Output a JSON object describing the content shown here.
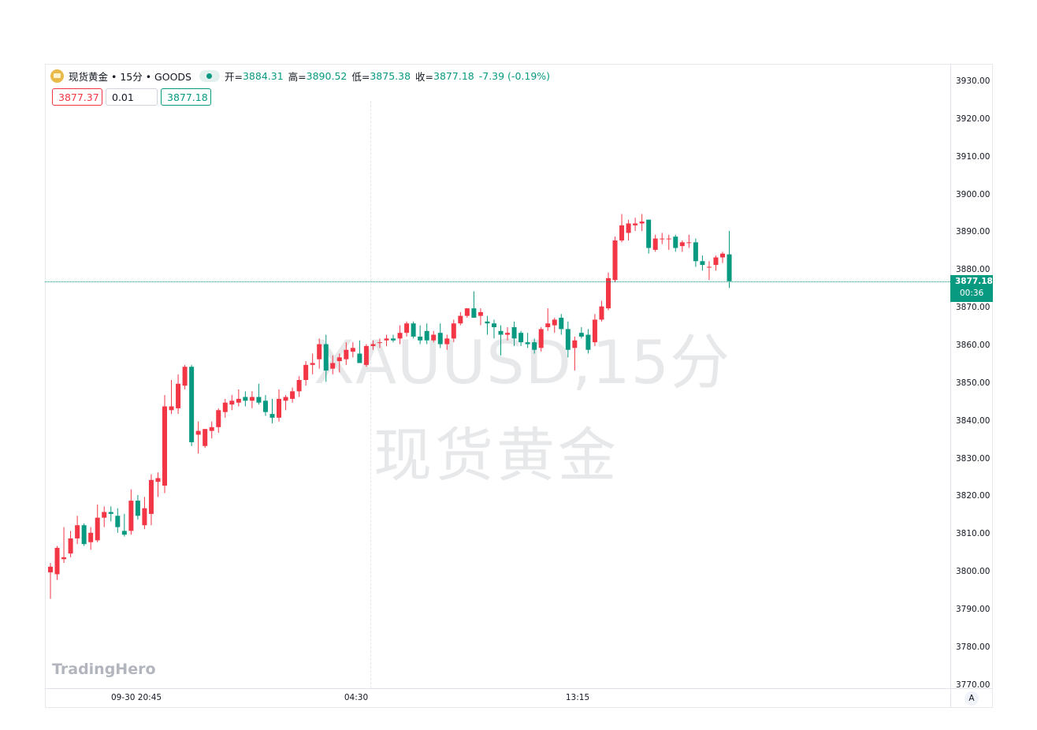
{
  "header": {
    "symbol": "现货黄金 • 15分 • GOODS",
    "open_label": "开=",
    "open_value": "3884.31",
    "high_label": "高=",
    "high_value": "3890.52",
    "low_label": "低=",
    "low_value": "3875.38",
    "close_label": "收=",
    "close_value": "3877.18",
    "change": "-7.39 (-0.19%)"
  },
  "trade_panel": {
    "sell_price": "3877.37",
    "quantity": "0.01",
    "buy_price": "3877.18"
  },
  "watermark": {
    "line1": "XAUUSD,15分",
    "line2": "现货黄金"
  },
  "brand": "TradingHero",
  "current_price": {
    "value": "3877.18",
    "countdown": "00:36"
  },
  "auto_scale_label": "A",
  "colors": {
    "up": "#f23645",
    "down": "#089981",
    "accent": "#089981"
  },
  "icons": {
    "symbol": "gold-coin-icon",
    "market_status": "market-open-dot-icon"
  },
  "chart_data": {
    "type": "candlestick",
    "title": "",
    "x_tick_labels": [
      "09-30 20:45",
      "04:30",
      "13:15"
    ],
    "y_tick_labels": [
      "3930.00",
      "3920.00",
      "3910.00",
      "3900.00",
      "3890.00",
      "3880.00",
      "3870.00",
      "3860.00",
      "3850.00",
      "3840.00",
      "3830.00",
      "3820.00",
      "3810.00",
      "3800.00",
      "3790.00",
      "3780.00",
      "3770.00"
    ],
    "ylim": [
      3770,
      3935
    ],
    "grid": false,
    "ohlc": [
      [
        3800.0,
        3802.5,
        3793.0,
        3801.5
      ],
      [
        3799.5,
        3807.0,
        3798.0,
        3806.5
      ],
      [
        3803.5,
        3812.0,
        3802.5,
        3804.0
      ],
      [
        3805.0,
        3811.0,
        3804.0,
        3809.0
      ],
      [
        3809.0,
        3815.0,
        3807.5,
        3812.5
      ],
      [
        3812.5,
        3813.0,
        3807.0,
        3807.5
      ],
      [
        3808.0,
        3812.0,
        3806.0,
        3810.5
      ],
      [
        3808.5,
        3818.0,
        3808.0,
        3814.5
      ],
      [
        3814.5,
        3817.5,
        3812.0,
        3816.0
      ],
      [
        3816.0,
        3817.5,
        3813.5,
        3815.5
      ],
      [
        3815.0,
        3817.0,
        3810.5,
        3812.0
      ],
      [
        3811.0,
        3815.5,
        3809.5,
        3810.0
      ],
      [
        3811.0,
        3822.0,
        3810.0,
        3819.0
      ],
      [
        3819.0,
        3820.5,
        3814.0,
        3815.0
      ],
      [
        3812.5,
        3820.0,
        3811.5,
        3817.0
      ],
      [
        3815.5,
        3826.0,
        3812.5,
        3824.5
      ],
      [
        3824.0,
        3826.5,
        3820.0,
        3825.0
      ],
      [
        3823.0,
        3847.0,
        3821.0,
        3844.0
      ],
      [
        3843.0,
        3851.0,
        3842.0,
        3844.0
      ],
      [
        3843.5,
        3852.5,
        3842.0,
        3850.0
      ],
      [
        3849.5,
        3855.0,
        3848.5,
        3854.5
      ],
      [
        3854.5,
        3855.0,
        3833.5,
        3834.5
      ],
      [
        3836.5,
        3840.0,
        3831.5,
        3837.5
      ],
      [
        3833.5,
        3838.0,
        3833.0,
        3838.0
      ],
      [
        3837.5,
        3840.0,
        3835.5,
        3838.5
      ],
      [
        3838.5,
        3843.5,
        3837.0,
        3843.0
      ],
      [
        3842.5,
        3846.0,
        3841.0,
        3845.0
      ],
      [
        3844.5,
        3847.0,
        3843.0,
        3845.5
      ],
      [
        3845.0,
        3848.5,
        3844.0,
        3846.0
      ],
      [
        3846.5,
        3848.0,
        3844.0,
        3845.5
      ],
      [
        3845.5,
        3848.0,
        3843.5,
        3846.5
      ],
      [
        3846.5,
        3850.0,
        3844.5,
        3845.0
      ],
      [
        3845.5,
        3847.0,
        3841.5,
        3842.5
      ],
      [
        3842.0,
        3846.0,
        3839.5,
        3841.0
      ],
      [
        3841.0,
        3848.5,
        3840.0,
        3846.0
      ],
      [
        3845.5,
        3847.0,
        3843.0,
        3846.5
      ],
      [
        3846.0,
        3849.0,
        3845.0,
        3848.0
      ],
      [
        3848.0,
        3852.0,
        3846.5,
        3851.0
      ],
      [
        3851.0,
        3856.0,
        3849.5,
        3855.0
      ],
      [
        3855.0,
        3858.0,
        3852.5,
        3855.5
      ],
      [
        3856.5,
        3862.0,
        3854.0,
        3860.5
      ],
      [
        3860.5,
        3863.0,
        3850.5,
        3853.5
      ],
      [
        3854.0,
        3857.5,
        3852.5,
        3855.5
      ],
      [
        3856.0,
        3858.0,
        3853.0,
        3857.0
      ],
      [
        3856.5,
        3861.0,
        3855.0,
        3859.0
      ],
      [
        3858.5,
        3861.0,
        3857.0,
        3859.5
      ],
      [
        3858.0,
        3861.5,
        3855.5,
        3855.5
      ],
      [
        3855.0,
        3860.5,
        3854.5,
        3860.0
      ],
      [
        3860.0,
        3861.5,
        3859.0,
        3860.5
      ],
      [
        3861.0,
        3862.0,
        3859.5,
        3861.0
      ],
      [
        3861.5,
        3863.0,
        3860.0,
        3862.0
      ],
      [
        3862.0,
        3863.0,
        3861.0,
        3861.5
      ],
      [
        3862.0,
        3865.5,
        3860.5,
        3863.5
      ],
      [
        3863.5,
        3866.5,
        3862.5,
        3866.0
      ],
      [
        3866.0,
        3866.5,
        3862.0,
        3862.5
      ],
      [
        3862.5,
        3865.5,
        3860.5,
        3861.5
      ],
      [
        3864.0,
        3866.0,
        3860.5,
        3861.5
      ],
      [
        3861.5,
        3864.0,
        3861.0,
        3863.0
      ],
      [
        3863.5,
        3866.0,
        3859.5,
        3860.5
      ],
      [
        3860.5,
        3863.0,
        3859.0,
        3862.0
      ],
      [
        3862.0,
        3867.0,
        3861.0,
        3866.0
      ],
      [
        3866.0,
        3869.0,
        3865.5,
        3868.0
      ],
      [
        3868.0,
        3870.0,
        3867.5,
        3870.0
      ],
      [
        3870.0,
        3874.5,
        3868.0,
        3867.5
      ],
      [
        3868.0,
        3870.0,
        3865.5,
        3869.0
      ],
      [
        3866.5,
        3868.0,
        3863.0,
        3866.0
      ],
      [
        3866.0,
        3867.0,
        3862.0,
        3865.0
      ],
      [
        3864.0,
        3865.5,
        3857.5,
        3863.0
      ],
      [
        3863.0,
        3865.0,
        3861.5,
        3863.5
      ],
      [
        3865.0,
        3866.5,
        3860.0,
        3862.0
      ],
      [
        3863.5,
        3864.0,
        3860.0,
        3861.0
      ],
      [
        3861.0,
        3863.5,
        3859.5,
        3860.5
      ],
      [
        3861.0,
        3862.0,
        3858.0,
        3859.0
      ],
      [
        3859.5,
        3865.0,
        3858.5,
        3864.5
      ],
      [
        3865.0,
        3870.0,
        3864.0,
        3866.0
      ],
      [
        3865.5,
        3867.5,
        3863.5,
        3867.0
      ],
      [
        3867.5,
        3868.5,
        3863.0,
        3864.5
      ],
      [
        3864.5,
        3866.5,
        3857.0,
        3859.0
      ],
      [
        3859.5,
        3862.5,
        3853.5,
        3861.5
      ],
      [
        3863.5,
        3865.0,
        3862.0,
        3862.5
      ],
      [
        3863.0,
        3864.5,
        3858.0,
        3859.0
      ],
      [
        3861.0,
        3868.5,
        3860.0,
        3867.0
      ],
      [
        3867.0,
        3872.0,
        3866.5,
        3870.5
      ],
      [
        3870.0,
        3879.5,
        3869.5,
        3878.0
      ],
      [
        3877.5,
        3889.0,
        3877.0,
        3888.0
      ],
      [
        3888.0,
        3895.0,
        3887.5,
        3892.0
      ],
      [
        3890.0,
        3893.5,
        3888.0,
        3892.5
      ],
      [
        3892.0,
        3894.0,
        3890.5,
        3892.5
      ],
      [
        3892.5,
        3895.0,
        3890.5,
        3893.0
      ],
      [
        3893.5,
        3893.5,
        3884.5,
        3886.0
      ],
      [
        3885.5,
        3889.5,
        3885.0,
        3888.5
      ],
      [
        3888.5,
        3890.0,
        3887.0,
        3888.5
      ],
      [
        3888.5,
        3889.5,
        3885.5,
        3888.5
      ],
      [
        3889.0,
        3889.5,
        3885.0,
        3886.0
      ],
      [
        3886.5,
        3888.0,
        3885.0,
        3887.5
      ],
      [
        3887.5,
        3889.5,
        3886.0,
        3887.5
      ],
      [
        3887.5,
        3888.5,
        3881.0,
        3882.5
      ],
      [
        3882.5,
        3884.0,
        3880.0,
        3881.5
      ],
      [
        3881.0,
        3882.5,
        3877.5,
        3881.0
      ],
      [
        3881.5,
        3884.0,
        3880.0,
        3883.5
      ],
      [
        3883.5,
        3885.0,
        3882.0,
        3884.5
      ],
      [
        3884.31,
        3890.52,
        3875.38,
        3877.18
      ]
    ]
  }
}
